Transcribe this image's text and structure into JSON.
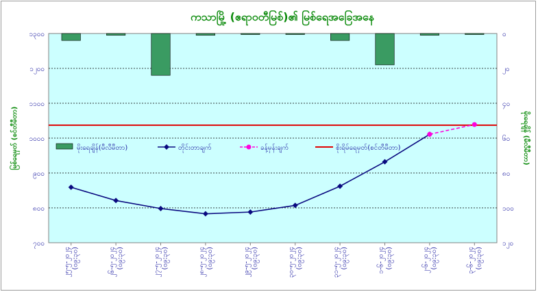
{
  "chart_data": {
    "type": "bar+line",
    "title": "ကသာမြို့ (ဧရာဝတီမြစ်)၏ မြစ်ရေအခြေအနေ",
    "ylabel_left": "မြစ်ရေမှတ် (စင်တီမီတာ)",
    "ylabel_right": "မိုးရေချိန် (မီလီမီတာ)",
    "categories": [
      "၂၅-၅-၂၀၂၄",
      "၂၆-၅-၂၀၂၄",
      "၂၇-၅-၂၀၂၄",
      "၂၈-၅-၂၀၂၄",
      "၂၉-၅-၂၀၂၄",
      "၃၀-၅-၂၀၂၄",
      "၃၁-၅-၂၀၂၄",
      "၁-၆-၂၀၂၄",
      "၂-၆-၂၀၂၄",
      "၃-၆-၂၀၂၄"
    ],
    "x_sublabel": "(၀၉:၃၀)",
    "left_axis": {
      "min": 700,
      "max": 1300,
      "ticks": [
        700,
        800,
        900,
        1000,
        1100,
        1200,
        1300
      ],
      "tick_labels": [
        "၇၀၀",
        "၈၀၀",
        "၉၀၀",
        "၁၀၀၀",
        "၁၁၀၀",
        "၁၂၀၀",
        "၁၃၀၀"
      ]
    },
    "right_axis": {
      "min": 0,
      "max": 120,
      "inverted": true,
      "ticks": [
        0,
        20,
        40,
        60,
        80,
        100,
        120
      ],
      "tick_labels": [
        "၀",
        "၂၀",
        "၄၀",
        "၆၀",
        "၈၀",
        "၁၀၀",
        "၁၂၀"
      ]
    },
    "series": [
      {
        "name": "မိုးရေချိန်(မီလီမီတာ)",
        "kind": "bar",
        "axis": "right",
        "color": "#3a9b62",
        "values": [
          4,
          1,
          24,
          1,
          0,
          0,
          4,
          18,
          1,
          0
        ]
      },
      {
        "name": "တိုင်းတာချက်",
        "kind": "line",
        "axis": "left",
        "color": "#0a0a80",
        "values": [
          859,
          821,
          798,
          783,
          788,
          807,
          862,
          932,
          1011,
          null
        ]
      },
      {
        "name": "ခန့်မှန်းချက်",
        "kind": "line-dashed",
        "axis": "left",
        "color": "#ff00dd",
        "values": [
          null,
          null,
          null,
          null,
          null,
          null,
          null,
          null,
          1011,
          1039
        ]
      },
      {
        "name": "စိုးရိမ်ရေမှတ်(စင်တီမီတာ)",
        "kind": "hline",
        "axis": "left",
        "color": "#e00000",
        "value": 1037
      }
    ],
    "grid": true,
    "plot_background": "#ccffff",
    "legend_position": "middle"
  }
}
